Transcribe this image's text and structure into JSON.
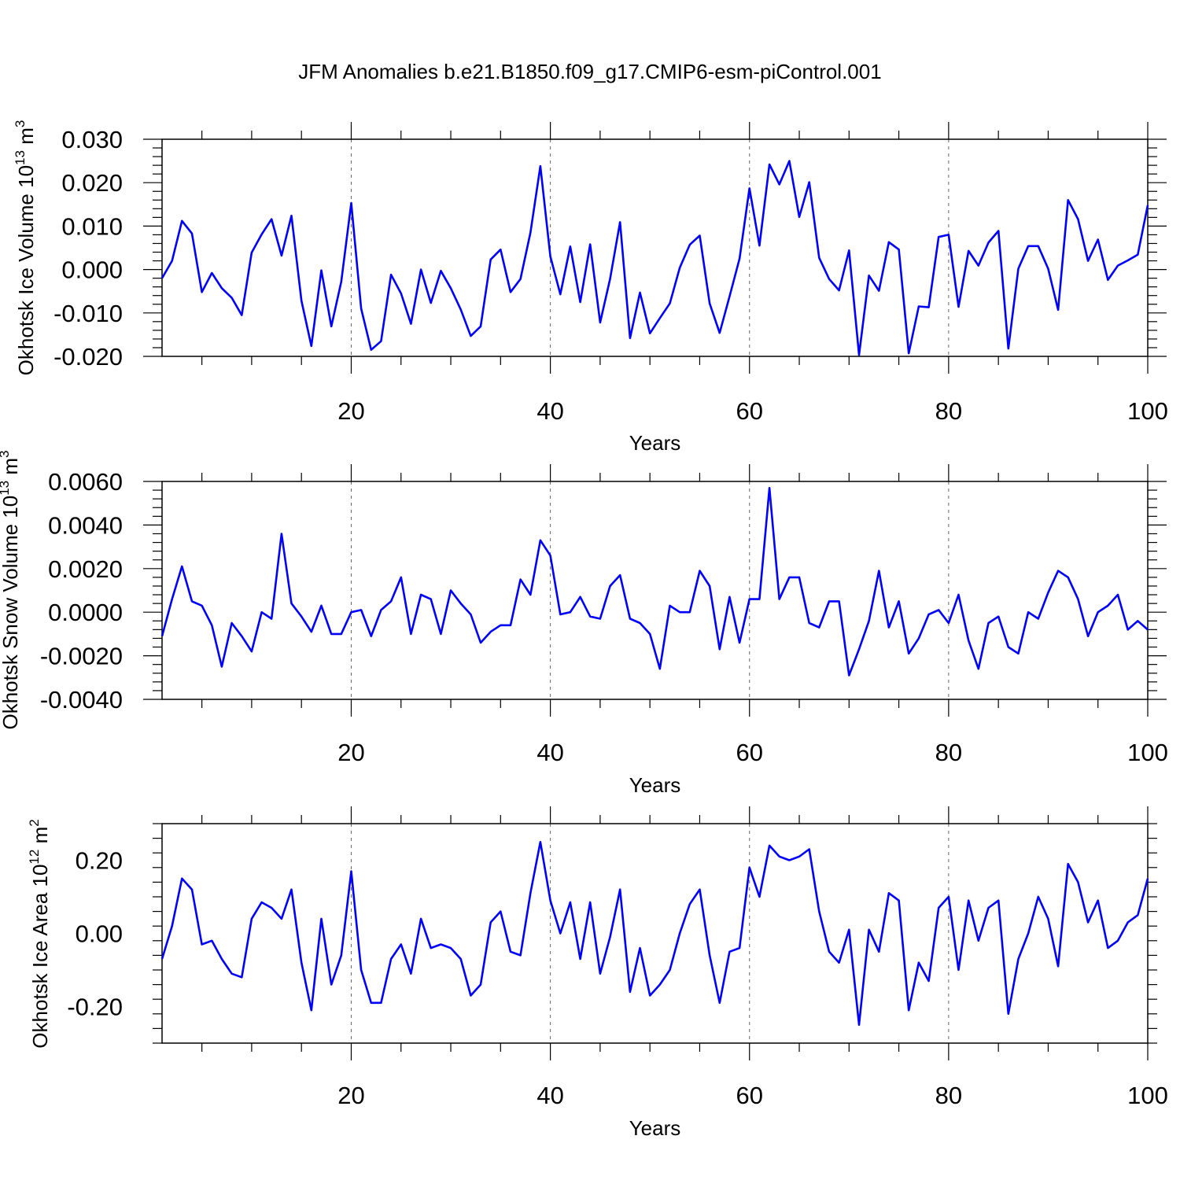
{
  "title": "JFM Anomalies b.e21.B1850.f09_g17.CMIP6-esm-piControl.001",
  "colors": {
    "line": "#0000ff",
    "axis": "#000000",
    "grid": "#666666"
  },
  "chart_data": [
    {
      "type": "line",
      "name": "ice-volume",
      "ylabel": "Okhotsk Ice Volume 10",
      "ylabel_exp": "13",
      "ylabel_unit": " m",
      "ylabel_unit_exp": "3",
      "xlabel": "Years",
      "xlim": [
        1,
        100
      ],
      "ylim": [
        -0.02,
        0.03
      ],
      "yticks": [
        -0.02,
        -0.01,
        0.0,
        0.01,
        0.02,
        0.03
      ],
      "yticklabels": [
        "-0.020",
        "-0.010",
        "0.000",
        "0.010",
        "0.020",
        "0.030"
      ],
      "xticks": [
        20,
        40,
        60,
        80,
        100
      ],
      "xticklabels": [
        "20",
        "40",
        "60",
        "80",
        "100"
      ],
      "gridlines_x": [
        20,
        40,
        60,
        80
      ],
      "values": [
        -0.002,
        0.002,
        0.0112,
        0.0083,
        -0.0052,
        -0.0008,
        -0.0043,
        -0.0065,
        -0.0105,
        0.0039,
        0.0081,
        0.0116,
        0.0032,
        0.0124,
        -0.0072,
        -0.0176,
        -0.0002,
        -0.0131,
        -0.0028,
        0.0153,
        -0.009,
        -0.0185,
        -0.0165,
        -0.0012,
        -0.0055,
        -0.0125,
        0.0,
        -0.0077,
        -0.0003,
        -0.0043,
        -0.0092,
        -0.0153,
        -0.0131,
        0.0023,
        0.0046,
        -0.0052,
        -0.0022,
        0.0085,
        0.0238,
        0.003,
        -0.0057,
        0.0053,
        -0.0075,
        0.0058,
        -0.0122,
        -0.0022,
        0.0109,
        -0.0158,
        -0.0053,
        -0.0147,
        -0.0112,
        -0.0078,
        0.0004,
        0.0057,
        0.0078,
        -0.0078,
        -0.0146,
        -0.0062,
        0.0025,
        0.0187,
        0.0055,
        0.0242,
        0.0196,
        0.025,
        0.0121,
        0.0201,
        0.0027,
        -0.0022,
        -0.0048,
        0.0044,
        -0.0197,
        -0.0014,
        -0.0049,
        0.0063,
        0.0046,
        -0.0193,
        -0.0085,
        -0.0087,
        0.0075,
        0.008,
        -0.0086,
        0.0043,
        0.0009,
        0.0062,
        0.0089,
        -0.0182,
        0.0002,
        0.0054,
        0.0054,
        0.0002,
        -0.0093,
        0.016,
        0.0116,
        0.002,
        0.0069,
        -0.0024,
        0.0009,
        0.0021,
        0.0034,
        0.0148
      ]
    },
    {
      "type": "line",
      "name": "snow-volume",
      "ylabel": "Okhotsk Snow Volume 10",
      "ylabel_exp": "13",
      "ylabel_unit": " m",
      "ylabel_unit_exp": "3",
      "xlabel": "Years",
      "xlim": [
        1,
        100
      ],
      "ylim": [
        -0.004,
        0.006
      ],
      "yticks": [
        -0.004,
        -0.002,
        0.0,
        0.002,
        0.004,
        0.006
      ],
      "yticklabels": [
        "-0.0040",
        "-0.0020",
        "0.0000",
        "0.0020",
        "0.0040",
        "0.0060"
      ],
      "xticks": [
        20,
        40,
        60,
        80,
        100
      ],
      "xticklabels": [
        "20",
        "40",
        "60",
        "80",
        "100"
      ],
      "gridlines_x": [
        20,
        40,
        60,
        80
      ],
      "values": [
        -0.0011,
        0.0006,
        0.0021,
        0.0005,
        0.0003,
        -0.0006,
        -0.0025,
        -0.0005,
        -0.0011,
        -0.0018,
        0.0,
        -0.0003,
        0.0036,
        0.0004,
        -0.0002,
        -0.0009,
        0.0003,
        -0.001,
        -0.001,
        0.0,
        0.0001,
        -0.0011,
        0.0001,
        0.0005,
        0.0016,
        -0.001,
        0.0008,
        0.0006,
        -0.001,
        0.001,
        0.0004,
        -0.0001,
        -0.0014,
        -0.0009,
        -0.0006,
        -0.0006,
        0.0015,
        0.0008,
        0.0033,
        0.0026,
        -0.0001,
        0.0,
        0.0007,
        -0.0002,
        -0.0003,
        0.0012,
        0.0017,
        -0.0003,
        -0.0005,
        -0.001,
        -0.0026,
        0.0003,
        0.0,
        0.0,
        0.0019,
        0.0012,
        -0.0017,
        0.0007,
        -0.0014,
        0.0006,
        0.0006,
        0.0057,
        0.0006,
        0.0016,
        0.0016,
        -0.0005,
        -0.0007,
        0.0005,
        0.0005,
        -0.0029,
        -0.0017,
        -0.0004,
        0.0019,
        -0.0007,
        0.0005,
        -0.0019,
        -0.0012,
        -0.0001,
        0.0001,
        -0.0005,
        0.0008,
        -0.0013,
        -0.0026,
        -0.0005,
        -0.0002,
        -0.0016,
        -0.0019,
        0.0,
        -0.0003,
        0.0009,
        0.0019,
        0.0016,
        0.0006,
        -0.0011,
        0.0,
        0.0003,
        0.0008,
        -0.0008,
        -0.0004,
        -0.0008
      ]
    },
    {
      "type": "line",
      "name": "ice-area",
      "ylabel": "Okhotsk Ice Area 10",
      "ylabel_exp": "12",
      "ylabel_unit": " m",
      "ylabel_unit_exp": "2",
      "xlabel": "Years",
      "xlim": [
        1,
        100
      ],
      "ylim": [
        -0.3,
        0.3
      ],
      "yticks": [
        -0.2,
        0.0,
        0.2
      ],
      "yticklabels": [
        "-0.20",
        "0.00",
        "0.20"
      ],
      "xticks": [
        20,
        40,
        60,
        80,
        100
      ],
      "xticklabels": [
        "20",
        "40",
        "60",
        "80",
        "100"
      ],
      "gridlines_x": [
        20,
        40,
        60,
        80
      ],
      "values": [
        -0.07,
        0.02,
        0.15,
        0.12,
        -0.03,
        -0.02,
        -0.07,
        -0.11,
        -0.12,
        0.04,
        0.085,
        0.07,
        0.04,
        0.12,
        -0.08,
        -0.21,
        0.04,
        -0.14,
        -0.06,
        0.17,
        -0.1,
        -0.19,
        -0.19,
        -0.07,
        -0.03,
        -0.11,
        0.04,
        -0.04,
        -0.03,
        -0.04,
        -0.07,
        -0.17,
        -0.14,
        0.03,
        0.06,
        -0.05,
        -0.06,
        0.11,
        0.25,
        0.09,
        0.0,
        0.085,
        -0.07,
        0.085,
        -0.11,
        -0.01,
        0.12,
        -0.16,
        -0.04,
        -0.17,
        -0.14,
        -0.1,
        0.0,
        0.08,
        0.12,
        -0.06,
        -0.19,
        -0.05,
        -0.04,
        0.18,
        0.1,
        0.24,
        0.21,
        0.2,
        0.21,
        0.23,
        0.06,
        -0.05,
        -0.08,
        0.01,
        -0.25,
        0.01,
        -0.05,
        0.11,
        0.09,
        -0.21,
        -0.08,
        -0.13,
        0.07,
        0.1,
        -0.1,
        0.09,
        -0.02,
        0.07,
        0.09,
        -0.22,
        -0.07,
        0.0,
        0.1,
        0.04,
        -0.09,
        0.19,
        0.14,
        0.03,
        0.09,
        -0.04,
        -0.02,
        0.03,
        0.05,
        0.15
      ]
    }
  ]
}
